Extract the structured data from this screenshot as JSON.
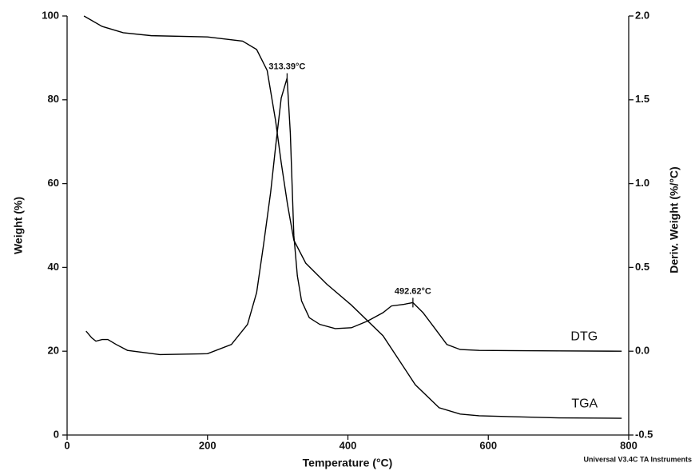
{
  "chart_data": {
    "type": "line",
    "xlabel": "Temperature (°C)",
    "ylabel": "Weight (%)",
    "y2label": "Deriv. Weight (%/°C)",
    "xlim": [
      0,
      800
    ],
    "xticks": [
      0,
      200,
      400,
      600,
      800
    ],
    "ylim": [
      0,
      100
    ],
    "yticks": [
      0,
      20,
      40,
      60,
      80,
      100
    ],
    "y2lim": [
      -0.5,
      2.0
    ],
    "y2ticks": [
      -0.5,
      {
        "value": 0,
        "label": "0.0"
      },
      0.5,
      {
        "value": 1,
        "label": "1.0"
      },
      1.5,
      {
        "value": 2,
        "label": "2.0"
      }
    ],
    "series": [
      {
        "name": "TGA",
        "color": "#000000",
        "axis": "y",
        "x": [
          24,
          50,
          80,
          120,
          200,
          250,
          270,
          285,
          297,
          305,
          314,
          323,
          340,
          370,
          405,
          450,
          496,
          530,
          560,
          587,
          650,
          700,
          790
        ],
        "values": [
          100,
          97.5,
          96,
          95.3,
          95,
          94,
          92,
          87,
          75,
          65,
          55,
          46.5,
          41,
          36,
          31,
          23.7,
          12,
          6.5,
          5,
          4.6,
          4.3,
          4.1,
          4
        ]
      },
      {
        "name": "DTG",
        "color": "#000000",
        "axis": "y2",
        "x": [
          27,
          35,
          41,
          50,
          58,
          70,
          86,
          132,
          200,
          234,
          257,
          270,
          280,
          290,
          297,
          305,
          313.39,
          318,
          323,
          328,
          334,
          345,
          360,
          382,
          405,
          428,
          450,
          462,
          480,
          492.62,
          507,
          525,
          541,
          560,
          587,
          650,
          700,
          790
        ],
        "values": [
          0.12,
          0.08,
          0.06,
          0.07,
          0.07,
          0.04,
          0.005,
          -0.02,
          -0.015,
          0.04,
          0.16,
          0.35,
          0.64,
          0.95,
          1.22,
          1.51,
          1.63,
          1.3,
          0.69,
          0.45,
          0.3,
          0.2,
          0.16,
          0.135,
          0.14,
          0.18,
          0.23,
          0.27,
          0.28,
          0.29,
          0.23,
          0.13,
          0.04,
          0.01,
          0.005,
          0.003,
          0.002,
          0
        ]
      }
    ],
    "annotations": [
      {
        "text": "313.39°C",
        "x": 313.39,
        "y": 1.63,
        "axis": "y2"
      },
      {
        "text": "492.62°C",
        "x": 492.62,
        "y": 0.29,
        "axis": "y2"
      }
    ],
    "footnote": "Universal V3.4C TA Instruments"
  }
}
